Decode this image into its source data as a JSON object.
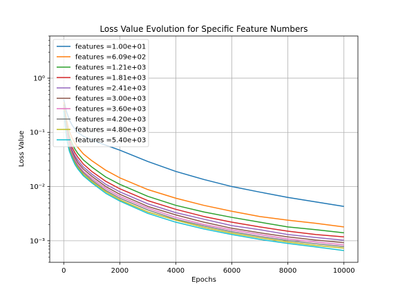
{
  "chart_data": {
    "type": "line",
    "title": "Loss Value Evolution for Specific Feature Numbers",
    "xlabel": "Epochs",
    "ylabel": "Loss Value",
    "xlim": [
      -500,
      10500
    ],
    "ylim": [
      0.0004,
      6
    ],
    "yscale": "log",
    "grid": true,
    "legend_position": "top-left",
    "x_ticks": [
      0,
      2000,
      4000,
      6000,
      8000,
      10000
    ],
    "x_tick_labels": [
      "0",
      "2000",
      "4000",
      "6000",
      "8000",
      "10000"
    ],
    "y_ticks": [
      0.001,
      0.01,
      0.1,
      1
    ],
    "y_tick_labels": [
      "10⁻³",
      "10⁻²",
      "10⁻¹",
      "10⁰"
    ],
    "x": [
      0,
      100,
      200,
      300,
      400,
      500,
      700,
      1000,
      1500,
      2000,
      3000,
      4000,
      5000,
      6000,
      7000,
      8000,
      9000,
      10000
    ],
    "series": [
      {
        "name": "features =1.00e+01",
        "color": "#1f77b4",
        "values": [
          0.4,
          0.24,
          0.17,
          0.135,
          0.115,
          0.1,
          0.085,
          0.072,
          0.058,
          0.047,
          0.029,
          0.019,
          0.0135,
          0.01,
          0.0079,
          0.0063,
          0.0052,
          0.0043
        ]
      },
      {
        "name": "features =6.09e+02",
        "color": "#ff7f0e",
        "values": [
          0.36,
          0.17,
          0.105,
          0.078,
          0.063,
          0.053,
          0.04,
          0.03,
          0.02,
          0.0145,
          0.0088,
          0.0061,
          0.0045,
          0.0035,
          0.0028,
          0.0024,
          0.0021,
          0.0018
        ]
      },
      {
        "name": "features =1.21e+03",
        "color": "#2ca02c",
        "values": [
          0.33,
          0.14,
          0.085,
          0.062,
          0.049,
          0.041,
          0.031,
          0.023,
          0.015,
          0.011,
          0.0066,
          0.0045,
          0.0034,
          0.0027,
          0.0022,
          0.0018,
          0.0016,
          0.0014
        ]
      },
      {
        "name": "features =1.81e+03",
        "color": "#d62728",
        "values": [
          0.31,
          0.12,
          0.073,
          0.053,
          0.042,
          0.035,
          0.026,
          0.019,
          0.0125,
          0.0091,
          0.0055,
          0.0038,
          0.0028,
          0.0022,
          0.0018,
          0.0015,
          0.0013,
          0.00118
        ]
      },
      {
        "name": "features =2.41e+03",
        "color": "#9467bd",
        "values": [
          0.3,
          0.11,
          0.065,
          0.047,
          0.037,
          0.031,
          0.023,
          0.017,
          0.011,
          0.008,
          0.0048,
          0.0033,
          0.0025,
          0.0019,
          0.0016,
          0.0013,
          0.00115,
          0.00102
        ]
      },
      {
        "name": "features =3.00e+03",
        "color": "#8c564b",
        "values": [
          0.29,
          0.1,
          0.059,
          0.043,
          0.034,
          0.028,
          0.021,
          0.0155,
          0.01,
          0.0072,
          0.0043,
          0.003,
          0.0022,
          0.0017,
          0.0014,
          0.00118,
          0.00103,
          0.00092
        ]
      },
      {
        "name": "features =3.60e+03",
        "color": "#e377c2",
        "values": [
          0.28,
          0.092,
          0.055,
          0.04,
          0.031,
          0.026,
          0.019,
          0.0142,
          0.0092,
          0.0066,
          0.004,
          0.0027,
          0.002,
          0.00158,
          0.0013,
          0.00108,
          0.00095,
          0.00084
        ]
      },
      {
        "name": "features =4.20e+03",
        "color": "#7f7f7f",
        "values": [
          0.27,
          0.086,
          0.051,
          0.037,
          0.029,
          0.024,
          0.018,
          0.0132,
          0.0085,
          0.0061,
          0.0037,
          0.0025,
          0.00188,
          0.00147,
          0.0012,
          0.00101,
          0.00088,
          0.00078
        ]
      },
      {
        "name": "features =4.80e+03",
        "color": "#bcbd22",
        "values": [
          0.26,
          0.081,
          0.048,
          0.035,
          0.027,
          0.0225,
          0.0168,
          0.0124,
          0.008,
          0.0057,
          0.0034,
          0.0024,
          0.00176,
          0.00138,
          0.00113,
          0.00095,
          0.00082,
          0.00073
        ]
      },
      {
        "name": "features =5.40e+03",
        "color": "#17becf",
        "values": [
          0.25,
          0.076,
          0.045,
          0.033,
          0.0255,
          0.0212,
          0.0158,
          0.0117,
          0.0075,
          0.0054,
          0.0032,
          0.0022,
          0.00165,
          0.0013,
          0.00106,
          0.00089,
          0.00077,
          0.00066
        ]
      }
    ]
  }
}
